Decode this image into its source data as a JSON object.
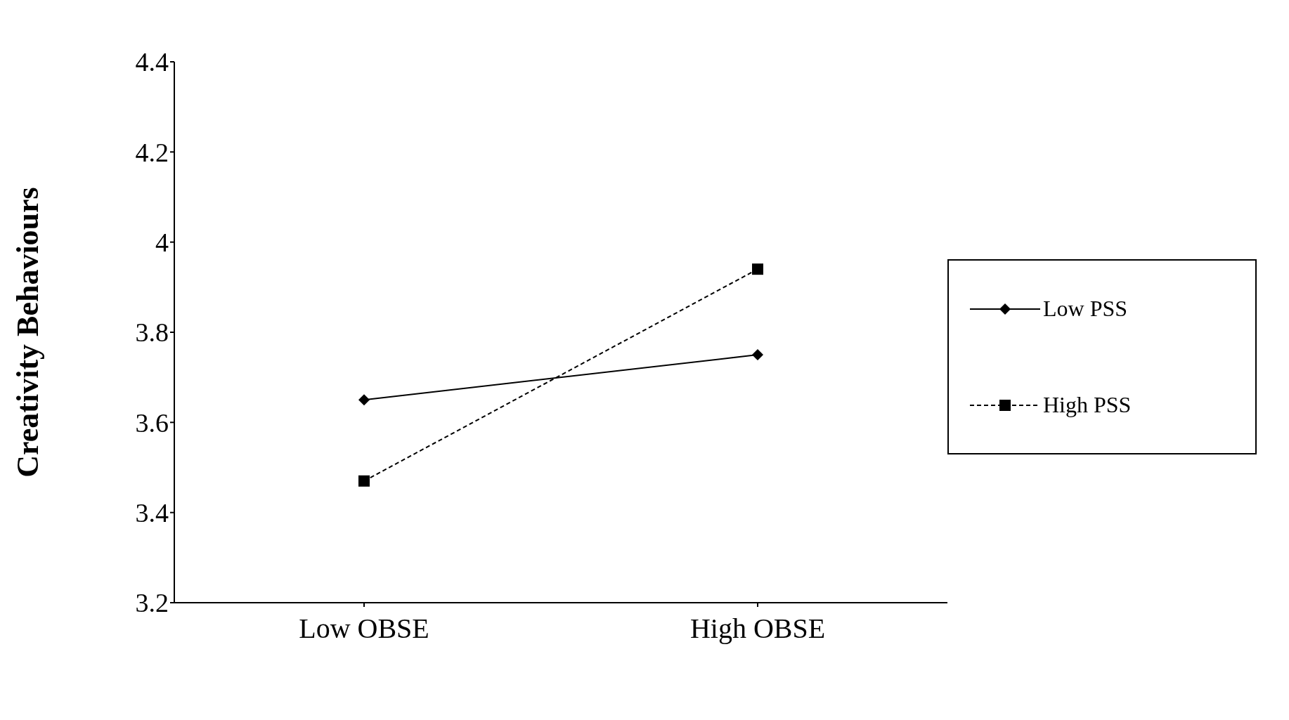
{
  "chart_data": {
    "type": "line",
    "ylabel": "Creativity  Behaviours",
    "categories": [
      "Low OBSE",
      "High OBSE"
    ],
    "series": [
      {
        "name": "Low PSS",
        "color": "#000000",
        "values": [
          3.65,
          3.75
        ],
        "marker": "diamond",
        "line_style": "solid"
      },
      {
        "name": "High PSS",
        "color": "#000000",
        "values": [
          3.47,
          3.94
        ],
        "marker": "square",
        "line_style": "dashed"
      }
    ],
    "ylim": [
      3.2,
      4.4
    ],
    "yticks": [
      3.2,
      3.4,
      3.6,
      3.8,
      4,
      4.2,
      4.4
    ],
    "legend": "right"
  }
}
